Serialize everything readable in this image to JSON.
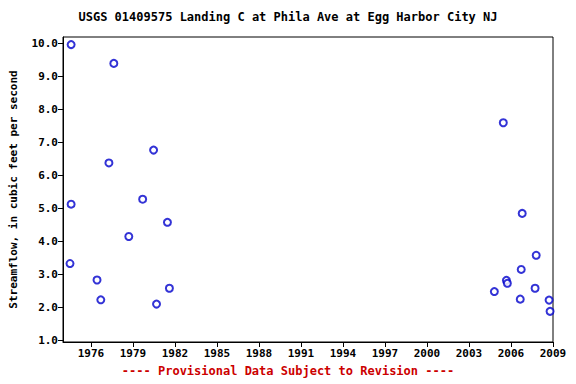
{
  "chart_data": {
    "type": "scatter",
    "title": "USGS 01409575 Landing C at Phila Ave at Egg Harbor City NJ",
    "subtitle": "---- Provisional Data Subject to Revision ----",
    "y_label": "Streamflow, in cubic feet per second",
    "x": [
      1974.58,
      1974.58,
      1974.5,
      1976.43,
      1976.7,
      1977.28,
      1977.63,
      1978.7,
      1979.69,
      1980.47,
      1980.68,
      1981.46,
      1981.6,
      2004.81,
      2005.45,
      2005.67,
      2005.74,
      2006.66,
      2006.73,
      2006.8,
      2007.72,
      2007.8,
      2008.72,
      2008.79
    ],
    "values": [
      9.97,
      5.13,
      3.33,
      2.83,
      2.23,
      6.38,
      9.4,
      4.15,
      5.28,
      6.77,
      2.1,
      4.58,
      2.58,
      2.48,
      7.6,
      2.82,
      2.73,
      2.25,
      3.15,
      4.85,
      2.58,
      3.58,
      2.22,
      1.88
    ],
    "color": "#0000cc",
    "marker": "circle",
    "grid": false,
    "xlim": [
      1974,
      2009
    ],
    "xticks": [
      1976,
      1979,
      1982,
      1985,
      1988,
      1991,
      1994,
      1997,
      2000,
      2003,
      2006,
      2009
    ],
    "ylim": [
      0.95,
      10.2
    ],
    "yticks": [
      {
        "value": 1,
        "label": "1.0"
      },
      {
        "value": 2,
        "label": "2.0"
      },
      {
        "value": 3,
        "label": "3.0"
      },
      {
        "value": 4,
        "label": "4.0"
      },
      {
        "value": 5,
        "label": "5.0"
      },
      {
        "value": 6,
        "label": "6.0"
      },
      {
        "value": 7,
        "label": "7.0"
      },
      {
        "value": 8,
        "label": "8.0"
      },
      {
        "value": 9,
        "label": "9.0"
      },
      {
        "value": 10,
        "label": "10.0"
      }
    ]
  }
}
